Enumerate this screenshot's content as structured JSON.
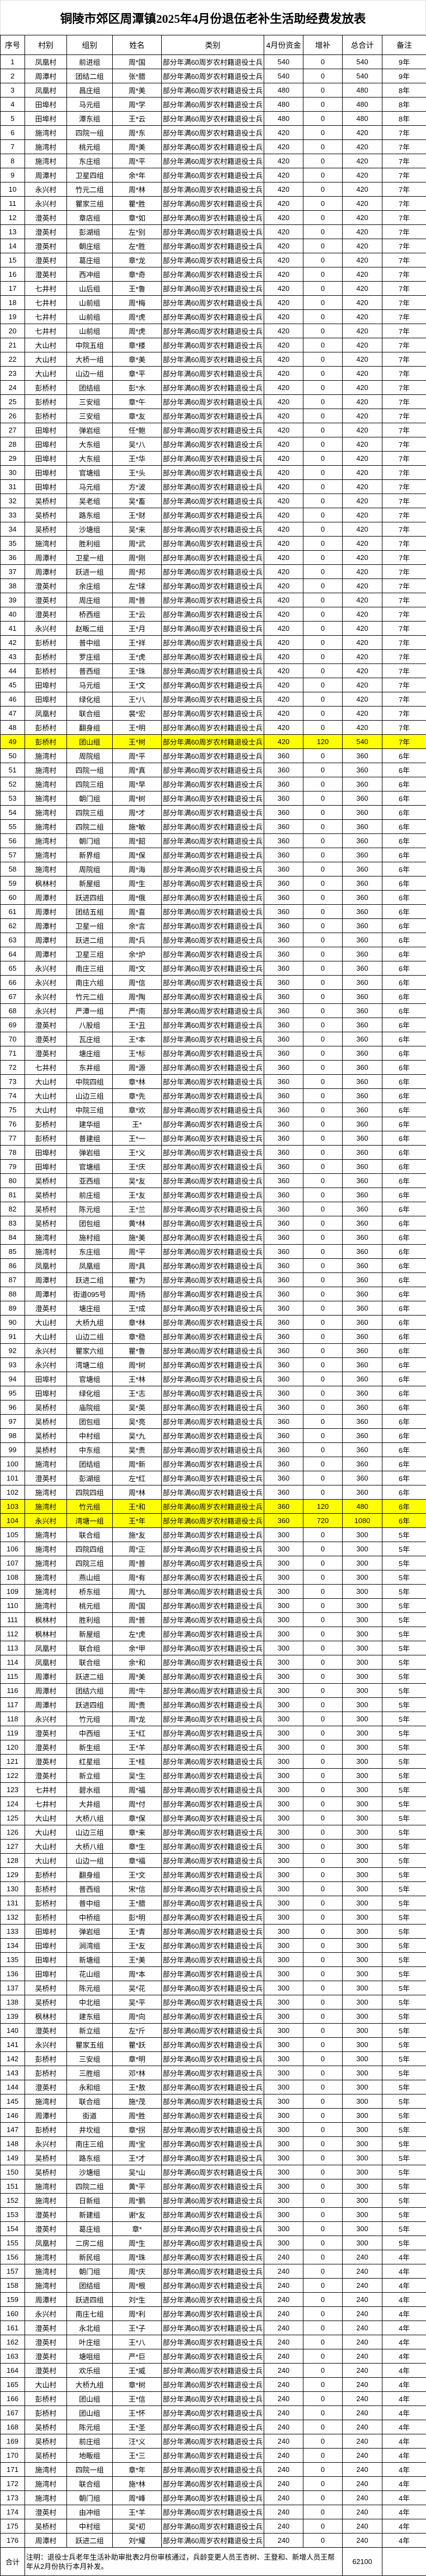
{
  "title": "铜陵市郊区周潭镇2025年4月份退伍老补生活助经费发放表",
  "columns": [
    "序号",
    "村别",
    "组别",
    "姓名",
    "类别",
    "4月份资金",
    "增补",
    "总合计",
    "备注"
  ],
  "category": "部分年满60周岁农村籍退役士兵",
  "highlight_color": "#ffff00",
  "highlight_rows": [
    49,
    103,
    104
  ],
  "rows": [
    [
      1,
      "凤凰村",
      "前进组",
      "周*国",
      540,
      0,
      540,
      "9年"
    ],
    [
      2,
      "周潭村",
      "团结二组",
      "张*腊",
      540,
      0,
      540,
      "9年"
    ],
    [
      3,
      "凤凰村",
      "昌庄组",
      "周*美",
      480,
      0,
      480,
      "8年"
    ],
    [
      4,
      "田埠村",
      "马元组",
      "周*学",
      480,
      0,
      480,
      "8年"
    ],
    [
      5,
      "田埠村",
      "潭东组",
      "王*云",
      480,
      0,
      480,
      "8年"
    ],
    [
      6,
      "施湾村",
      "四院一组",
      "周*东",
      420,
      0,
      420,
      "7年"
    ],
    [
      7,
      "施湾村",
      "桃元组",
      "周*美",
      420,
      0,
      420,
      "7年"
    ],
    [
      8,
      "施湾村",
      "东庄组",
      "周*平",
      420,
      0,
      420,
      "7年"
    ],
    [
      9,
      "周潭村",
      "卫星四组",
      "余*年",
      420,
      0,
      420,
      "7年"
    ],
    [
      10,
      "永兴村",
      "竹元二组",
      "周*林",
      420,
      0,
      420,
      "7年"
    ],
    [
      11,
      "永兴村",
      "瞿家三组",
      "瞿*胜",
      420,
      0,
      420,
      "7年"
    ],
    [
      12,
      "澄英村",
      "章店组",
      "章*如",
      420,
      0,
      420,
      "7年"
    ],
    [
      13,
      "澄英村",
      "彭湖组",
      "左*别",
      420,
      0,
      420,
      "7年"
    ],
    [
      14,
      "澄英村",
      "朝庄组",
      "左*胜",
      420,
      0,
      420,
      "7年"
    ],
    [
      15,
      "澄英村",
      "葛庄组",
      "章*龙",
      420,
      0,
      420,
      "7年"
    ],
    [
      16,
      "澄英村",
      "西冲组",
      "章*奇",
      420,
      0,
      420,
      "7年"
    ],
    [
      17,
      "七井村",
      "山后组",
      "王*鲁",
      420,
      0,
      420,
      "7年"
    ],
    [
      18,
      "七井村",
      "山前组",
      "周*梅",
      420,
      0,
      420,
      "7年"
    ],
    [
      19,
      "七井村",
      "山前组",
      "周*虎",
      420,
      0,
      420,
      "7年"
    ],
    [
      20,
      "七井村",
      "山前组",
      "周*虎",
      420,
      0,
      420,
      "7年"
    ],
    [
      21,
      "大山村",
      "中院五组",
      "章*楼",
      420,
      0,
      420,
      "7年"
    ],
    [
      22,
      "大山村",
      "大桥一组",
      "章*美",
      420,
      0,
      420,
      "7年"
    ],
    [
      23,
      "大山村",
      "山边一组",
      "章*平",
      420,
      0,
      420,
      "7年"
    ],
    [
      24,
      "彭桥村",
      "团结组",
      "彭*水",
      420,
      0,
      420,
      "7年"
    ],
    [
      25,
      "彭桥村",
      "三安组",
      "章*午",
      420,
      0,
      420,
      "7年"
    ],
    [
      26,
      "彭桥村",
      "三安组",
      "章*友",
      420,
      0,
      420,
      "7年"
    ],
    [
      27,
      "田埠村",
      "弹岩组",
      "任*鲍",
      420,
      0,
      420,
      "7年"
    ],
    [
      28,
      "田埠村",
      "大东组",
      "吴*八",
      420,
      0,
      420,
      "7年"
    ],
    [
      29,
      "田埠村",
      "大东组",
      "王*华",
      420,
      0,
      420,
      "7年"
    ],
    [
      30,
      "田埠村",
      "官塘组",
      "王*头",
      420,
      0,
      420,
      "7年"
    ],
    [
      31,
      "田埠村",
      "马元组",
      "方*波",
      420,
      0,
      420,
      "7年"
    ],
    [
      32,
      "吴桥村",
      "吴老组",
      "吴*畜",
      420,
      0,
      420,
      "7年"
    ],
    [
      33,
      "吴桥村",
      "路东组",
      "王*财",
      420,
      0,
      420,
      "7年"
    ],
    [
      34,
      "吴桥村",
      "沙塘组",
      "吴*来",
      420,
      0,
      420,
      "7年"
    ],
    [
      35,
      "施湾村",
      "胜利组",
      "周*武",
      420,
      0,
      420,
      "7年"
    ],
    [
      36,
      "周潭村",
      "卫星一组",
      "周*刚",
      420,
      0,
      420,
      "7年"
    ],
    [
      37,
      "周潭村",
      "跃进一组",
      "周*邦",
      420,
      0,
      420,
      "7年"
    ],
    [
      38,
      "澄英村",
      "余庄组",
      "左*球",
      420,
      0,
      420,
      "7年"
    ],
    [
      39,
      "澄英村",
      "周庄组",
      "周*普",
      420,
      0,
      420,
      "7年"
    ],
    [
      40,
      "澄英村",
      "桥西组",
      "王*云",
      420,
      0,
      420,
      "7年"
    ],
    [
      41,
      "永兴村",
      "赵畈二组",
      "王*月",
      420,
      0,
      420,
      "7年"
    ],
    [
      42,
      "彭桥村",
      "普中组",
      "王*祥",
      420,
      0,
      420,
      "7年"
    ],
    [
      43,
      "彭桥村",
      "罗庄组",
      "王*虎",
      420,
      0,
      420,
      "7年"
    ],
    [
      44,
      "彭桥村",
      "普西组",
      "王*珠",
      420,
      0,
      420,
      "7年"
    ],
    [
      45,
      "田埠村",
      "马元组",
      "王*文",
      420,
      0,
      420,
      "7年"
    ],
    [
      46,
      "田埠村",
      "绿化组",
      "王*八",
      420,
      0,
      420,
      "7年"
    ],
    [
      47,
      "凤凰村",
      "联合组",
      "裴*宏",
      420,
      0,
      420,
      "7年"
    ],
    [
      48,
      "彭桥村",
      "翻身组",
      "王*明",
      420,
      0,
      420,
      "7年"
    ],
    [
      49,
      "彭桥村",
      "团山组",
      "王*树",
      420,
      120,
      540,
      "7年"
    ],
    [
      50,
      "施湾村",
      "周院组",
      "周*平",
      360,
      0,
      360,
      "6年"
    ],
    [
      51,
      "施湾村",
      "四院一组",
      "周*真",
      360,
      0,
      360,
      "6年"
    ],
    [
      52,
      "施湾村",
      "四院三组",
      "周*早",
      360,
      0,
      360,
      "6年"
    ],
    [
      53,
      "施湾村",
      "朝门组",
      "周*树",
      360,
      0,
      360,
      "6年"
    ],
    [
      54,
      "施湾村",
      "四院三组",
      "周*才",
      360,
      0,
      360,
      "6年"
    ],
    [
      55,
      "施湾村",
      "四院二组",
      "施*敏",
      360,
      0,
      360,
      "6年"
    ],
    [
      56,
      "施湾村",
      "朝门组",
      "周*韶",
      360,
      0,
      360,
      "6年"
    ],
    [
      57,
      "施湾村",
      "新界组",
      "周*保",
      360,
      0,
      360,
      "6年"
    ],
    [
      58,
      "施湾村",
      "周院组",
      "周*海",
      360,
      0,
      360,
      "6年"
    ],
    [
      59,
      "枫林村",
      "新屋组",
      "周*生",
      360,
      0,
      360,
      "6年"
    ],
    [
      60,
      "周潭村",
      "跃进四组",
      "周*俄",
      360,
      0,
      360,
      "6年"
    ],
    [
      61,
      "周潭村",
      "团结五组",
      "周*喜",
      360,
      0,
      360,
      "6年"
    ],
    [
      62,
      "周潭村",
      "卫星一组",
      "余*言",
      360,
      0,
      360,
      "6年"
    ],
    [
      63,
      "周潭村",
      "跃进二组",
      "周*兵",
      360,
      0,
      360,
      "6年"
    ],
    [
      64,
      "周潭村",
      "卫星三组",
      "余*炉",
      360,
      0,
      360,
      "6年"
    ],
    [
      65,
      "永兴村",
      "南庄三组",
      "周*文",
      360,
      0,
      360,
      "6年"
    ],
    [
      66,
      "永兴村",
      "南庄六组",
      "周*信",
      360,
      0,
      360,
      "6年"
    ],
    [
      67,
      "永兴村",
      "竹元二组",
      "周*陶",
      360,
      0,
      360,
      "6年"
    ],
    [
      68,
      "永兴村",
      "严潭一组",
      "严*南",
      360,
      0,
      360,
      "6年"
    ],
    [
      69,
      "澄英村",
      "八股组",
      "王*丑",
      360,
      0,
      360,
      "6年"
    ],
    [
      70,
      "澄英村",
      "瓦庄组",
      "王*本",
      360,
      0,
      360,
      "6年"
    ],
    [
      71,
      "澄英村",
      "塘庄组",
      "王*标",
      360,
      0,
      360,
      "6年"
    ],
    [
      72,
      "七井村",
      "东井组",
      "周*源",
      360,
      0,
      360,
      "6年"
    ],
    [
      73,
      "大山村",
      "中院四组",
      "章*林",
      360,
      0,
      360,
      "6年"
    ],
    [
      74,
      "大山村",
      "山边三组",
      "章*先",
      360,
      0,
      360,
      "6年"
    ],
    [
      75,
      "大山村",
      "中院三组",
      "章*欢",
      360,
      0,
      360,
      "6年"
    ],
    [
      76,
      "彭桥村",
      "建华组",
      "王*",
      360,
      0,
      360,
      "6年"
    ],
    [
      77,
      "彭桥村",
      "普建组",
      "王*一",
      360,
      0,
      360,
      "6年"
    ],
    [
      78,
      "田埠村",
      "弹岩组",
      "王*义",
      360,
      0,
      360,
      "6年"
    ],
    [
      79,
      "田埠村",
      "官塘组",
      "王*庆",
      360,
      0,
      360,
      "6年"
    ],
    [
      80,
      "吴桥村",
      "亚西组",
      "吴*友",
      360,
      0,
      360,
      "6年"
    ],
    [
      81,
      "吴桥村",
      "前庄组",
      "王*友",
      360,
      0,
      360,
      "6年"
    ],
    [
      82,
      "吴桥村",
      "陈元组",
      "王*兰",
      360,
      0,
      360,
      "6年"
    ],
    [
      83,
      "吴桥村",
      "团包组",
      "黄*林",
      360,
      0,
      360,
      "6年"
    ],
    [
      84,
      "施湾村",
      "施村组",
      "施*美",
      360,
      0,
      360,
      "6年"
    ],
    [
      85,
      "施湾村",
      "东庄组",
      "周*平",
      360,
      0,
      360,
      "6年"
    ],
    [
      86,
      "凤凰村",
      "凤凰组",
      "周*具",
      360,
      0,
      360,
      "6年"
    ],
    [
      87,
      "周潭村",
      "跃进二组",
      "瞿*为",
      360,
      0,
      360,
      "6年"
    ],
    [
      88,
      "周潭村",
      "街道095号",
      "周*扬",
      360,
      0,
      360,
      "6年"
    ],
    [
      89,
      "澄英村",
      "塘庄组",
      "王*成",
      360,
      0,
      360,
      "6年"
    ],
    [
      90,
      "大山村",
      "大桥九组",
      "章*林",
      360,
      0,
      360,
      "6年"
    ],
    [
      91,
      "大山村",
      "山边二组",
      "章*稳",
      360,
      0,
      360,
      "6年"
    ],
    [
      92,
      "永兴村",
      "瞿家六组",
      "瞿*鲁",
      360,
      0,
      360,
      "6年"
    ],
    [
      93,
      "永兴村",
      "湾塘二组",
      "周*树",
      360,
      0,
      360,
      "6年"
    ],
    [
      94,
      "田埠村",
      "官塘组",
      "王*林",
      360,
      0,
      360,
      "6年"
    ],
    [
      95,
      "田埠村",
      "绿化组",
      "王*志",
      360,
      0,
      360,
      "6年"
    ],
    [
      96,
      "吴桥村",
      "庙院组",
      "吴*英",
      360,
      0,
      360,
      "6年"
    ],
    [
      97,
      "吴桥村",
      "团包组",
      "吴*亮",
      360,
      0,
      360,
      "6年"
    ],
    [
      98,
      "吴桥村",
      "中村组",
      "吴*九",
      360,
      0,
      360,
      "6年"
    ],
    [
      99,
      "吴桥村",
      "中东组",
      "吴*贵",
      360,
      0,
      360,
      "6年"
    ],
    [
      100,
      "施湾村",
      "团结组",
      "周*新",
      360,
      0,
      360,
      "6年"
    ],
    [
      101,
      "澄英村",
      "彭湖组",
      "左*红",
      360,
      0,
      360,
      "6年"
    ],
    [
      102,
      "施湾村",
      "四院四组",
      "周*林",
      360,
      0,
      360,
      "6年"
    ],
    [
      103,
      "施湾村",
      "竹元组",
      "王*和",
      360,
      120,
      480,
      "6年"
    ],
    [
      104,
      "永兴村",
      "湾塘一组",
      "王*年",
      360,
      720,
      1080,
      "6年"
    ],
    [
      105,
      "施湾村",
      "联合组",
      "施*友",
      300,
      0,
      300,
      "5年"
    ],
    [
      106,
      "施湾村",
      "四院四组",
      "周*正",
      300,
      0,
      300,
      "5年"
    ],
    [
      107,
      "施湾村",
      "四院三组",
      "周*普",
      300,
      0,
      300,
      "5年"
    ],
    [
      108,
      "施湾村",
      "燕山组",
      "周*有",
      300,
      0,
      300,
      "5年"
    ],
    [
      109,
      "施湾村",
      "桥东组",
      "周*九",
      300,
      0,
      300,
      "5年"
    ],
    [
      110,
      "施湾村",
      "桃元组",
      "周*国",
      300,
      0,
      300,
      "5年"
    ],
    [
      111,
      "枫林村",
      "胜利组",
      "周*普",
      300,
      0,
      300,
      "5年"
    ],
    [
      112,
      "枫林村",
      "新屋组",
      "左*虎",
      300,
      0,
      300,
      "5年"
    ],
    [
      113,
      "凤凰村",
      "联合组",
      "余*甲",
      300,
      0,
      300,
      "5年"
    ],
    [
      114,
      "凤凰村",
      "联合组",
      "余*和",
      300,
      0,
      300,
      "5年"
    ],
    [
      115,
      "周潭村",
      "跃进二组",
      "周*美",
      300,
      0,
      300,
      "5年"
    ],
    [
      116,
      "周潭村",
      "团结六组",
      "周*牛",
      300,
      0,
      300,
      "5年"
    ],
    [
      117,
      "周潭村",
      "跃进四组",
      "周*贵",
      300,
      0,
      300,
      "5年"
    ],
    [
      118,
      "永兴村",
      "竹元组",
      "周*龙",
      300,
      0,
      300,
      "5年"
    ],
    [
      119,
      "澄英村",
      "中西组",
      "王*红",
      300,
      0,
      300,
      "5年"
    ],
    [
      120,
      "澄英村",
      "新生组",
      "王*羊",
      300,
      0,
      300,
      "5年"
    ],
    [
      121,
      "澄英村",
      "红星组",
      "王*桂",
      300,
      0,
      300,
      "5年"
    ],
    [
      122,
      "澄英村",
      "新立组",
      "吴*生",
      300,
      0,
      300,
      "5年"
    ],
    [
      123,
      "七井村",
      "碧水组",
      "周*福",
      300,
      0,
      300,
      "5年"
    ],
    [
      124,
      "七井村",
      "大井组",
      "周*付",
      300,
      0,
      300,
      "5年"
    ],
    [
      125,
      "大山村",
      "大桥八组",
      "章*保",
      300,
      0,
      300,
      "5年"
    ],
    [
      126,
      "大山村",
      "山边三组",
      "章*来",
      300,
      0,
      300,
      "5年"
    ],
    [
      127,
      "大山村",
      "大桥八组",
      "章*生",
      300,
      0,
      300,
      "5年"
    ],
    [
      128,
      "大山村",
      "山边一组",
      "章*福",
      300,
      0,
      300,
      "5年"
    ],
    [
      129,
      "彭桥村",
      "翻身组",
      "王*文",
      300,
      0,
      300,
      "5年"
    ],
    [
      130,
      "彭桥村",
      "普西组",
      "宋*信",
      300,
      0,
      300,
      "5年"
    ],
    [
      131,
      "彭桥村",
      "普中组",
      "王*腊",
      300,
      0,
      300,
      "5年"
    ],
    [
      132,
      "彭桥村",
      "中桥组",
      "彭*明",
      300,
      0,
      300,
      "5年"
    ],
    [
      133,
      "田埠村",
      "弹岩组",
      "王*青",
      300,
      0,
      300,
      "5年"
    ],
    [
      134,
      "田埠村",
      "涧湾组",
      "王*友",
      300,
      0,
      300,
      "5年"
    ],
    [
      135,
      "田埠村",
      "新塘组",
      "王*美",
      300,
      0,
      300,
      "5年"
    ],
    [
      136,
      "田埠村",
      "花山组",
      "周*本",
      300,
      0,
      300,
      "5年"
    ],
    [
      137,
      "吴桥村",
      "陈元组",
      "吴*花",
      300,
      0,
      300,
      "5年"
    ],
    [
      138,
      "吴桥村",
      "中北组",
      "吴*平",
      300,
      0,
      300,
      "5年"
    ],
    [
      139,
      "枫林村",
      "建东组",
      "周*向",
      300,
      0,
      300,
      "5年"
    ],
    [
      140,
      "澄英村",
      "新立组",
      "左*斤",
      300,
      0,
      300,
      "5年"
    ],
    [
      141,
      "永兴村",
      "瞿家五组",
      "瞿*跃",
      300,
      0,
      300,
      "5年"
    ],
    [
      142,
      "彭桥村",
      "三安组",
      "章*明",
      300,
      0,
      300,
      "5年"
    ],
    [
      143,
      "彭桥村",
      "三胜组",
      "邓*林",
      300,
      0,
      300,
      "5年"
    ],
    [
      144,
      "澄英村",
      "永和组",
      "王*敖",
      300,
      0,
      300,
      "5年"
    ],
    [
      145,
      "施湾村",
      "联合组",
      "施*茂",
      300,
      0,
      300,
      "5年"
    ],
    [
      146,
      "周潭村",
      "街道",
      "周*胜",
      300,
      0,
      300,
      "5年"
    ],
    [
      147,
      "彭桥村",
      "井坎组",
      "章*拐",
      300,
      0,
      300,
      "5年"
    ],
    [
      148,
      "永兴村",
      "南庄三组",
      "周*宝",
      300,
      0,
      300,
      "5年"
    ],
    [
      149,
      "吴桥村",
      "路东组",
      "王*才",
      300,
      0,
      300,
      "5年"
    ],
    [
      150,
      "吴桥村",
      "沙塘组",
      "吴*山",
      300,
      0,
      300,
      "5年"
    ],
    [
      151,
      "施湾村",
      "四院二组",
      "黄*平",
      300,
      0,
      300,
      "5年"
    ],
    [
      152,
      "施湾村",
      "日新组",
      "周*鹏",
      300,
      0,
      300,
      "5年"
    ],
    [
      153,
      "澄英村",
      "新建组",
      "谢*友",
      300,
      0,
      300,
      "5年"
    ],
    [
      154,
      "澄英村",
      "葛庄组",
      "章*",
      300,
      0,
      300,
      "5年"
    ],
    [
      155,
      "凤凰村",
      "二房二组",
      "周*生",
      300,
      0,
      300,
      "5年"
    ],
    [
      156,
      "施湾村",
      "新民组",
      "周*珠",
      240,
      0,
      240,
      "4年"
    ],
    [
      157,
      "施湾村",
      "朝门组",
      "周*庆",
      240,
      0,
      240,
      "4年"
    ],
    [
      158,
      "施湾村",
      "团结组",
      "周*根",
      240,
      0,
      240,
      "4年"
    ],
    [
      159,
      "周潭村",
      "跃进四组",
      "刘*生",
      240,
      0,
      240,
      "4年"
    ],
    [
      160,
      "永兴村",
      "南庄七组",
      "周*利",
      240,
      0,
      240,
      "4年"
    ],
    [
      161,
      "澄英村",
      "永北组",
      "王*子",
      240,
      0,
      240,
      "4年"
    ],
    [
      162,
      "澄英村",
      "叶庄组",
      "王*八",
      240,
      0,
      240,
      "4年"
    ],
    [
      163,
      "澄英村",
      "塘咀组",
      "严*巨",
      240,
      0,
      240,
      "4年"
    ],
    [
      164,
      "澄英村",
      "欢乐组",
      "王*威",
      240,
      0,
      240,
      "4年"
    ],
    [
      165,
      "大山村",
      "大桥九组",
      "章*树",
      240,
      0,
      240,
      "4年"
    ],
    [
      166,
      "彭桥村",
      "团山组",
      "王*信",
      240,
      0,
      240,
      "4年"
    ],
    [
      167,
      "彭桥村",
      "团山组",
      "王*怀",
      240,
      0,
      240,
      "4年"
    ],
    [
      168,
      "吴桥村",
      "陈元组",
      "王*圣",
      240,
      0,
      240,
      "4年"
    ],
    [
      169,
      "吴桥村",
      "前庄组",
      "汪*义",
      240,
      0,
      240,
      "4年"
    ],
    [
      170,
      "吴桥村",
      "地畈组",
      "王*三",
      240,
      0,
      240,
      "4年"
    ],
    [
      171,
      "施湾村",
      "四院一组",
      "章*年",
      240,
      0,
      240,
      "4年"
    ],
    [
      172,
      "施湾村",
      "联合组",
      "施*林",
      240,
      0,
      240,
      "4年"
    ],
    [
      173,
      "施湾村",
      "朝门组",
      "周*峰",
      240,
      0,
      240,
      "4年"
    ],
    [
      174,
      "澄英村",
      "由冲组",
      "王*羊",
      240,
      0,
      240,
      "4年"
    ],
    [
      175,
      "吴桥村",
      "中村组",
      "吴*初",
      240,
      0,
      240,
      "4年"
    ],
    [
      176,
      "周潭村",
      "跃进二组",
      "刘*耀",
      240,
      0,
      240,
      "4年"
    ]
  ],
  "footer": {
    "label": "合计",
    "note": "注明：退役士兵老年生活补助审批表2月份审核通过，兵龄变更人员王杏树、王登和、新增人员王帮年从2月份执行本月补发。",
    "total": "62100",
    "remark": ""
  }
}
